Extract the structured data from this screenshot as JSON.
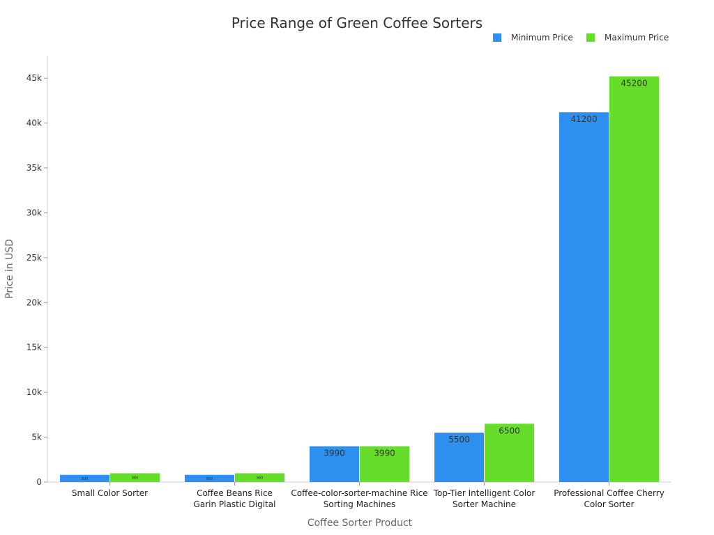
{
  "chart_data": {
    "type": "bar",
    "title": "Price Range of Green Coffee Sorters",
    "xlabel": "Coffee Sorter Product",
    "ylabel": "Price in USD",
    "ylim": [
      0,
      47500
    ],
    "yticks": [
      0,
      5000,
      10000,
      15000,
      20000,
      25000,
      30000,
      35000,
      40000,
      45000
    ],
    "ytick_labels": [
      "0",
      "5k",
      "10k",
      "15k",
      "20k",
      "25k",
      "30k",
      "35k",
      "40k",
      "45k"
    ],
    "categories": [
      [
        "Small Color Sorter"
      ],
      [
        "Coffee Beans Rice",
        "Garin Plastic Digital"
      ],
      [
        "Coffee-color-sorter-machine Rice",
        "Sorting Machines"
      ],
      [
        "Top-Tier Intelligent Color",
        "Sorter Machine"
      ],
      [
        "Professional Coffee Cherry",
        "Color Sorter"
      ]
    ],
    "series": [
      {
        "name": "Minimum Price",
        "color": "#2d8ff0",
        "values": [
          800,
          800,
          3990,
          5500,
          41200
        ]
      },
      {
        "name": "Maximum Price",
        "color": "#66dd2a",
        "values": [
          980,
          980,
          3990,
          6500,
          45200
        ]
      }
    ],
    "legend": "top-right",
    "grid": false
  }
}
